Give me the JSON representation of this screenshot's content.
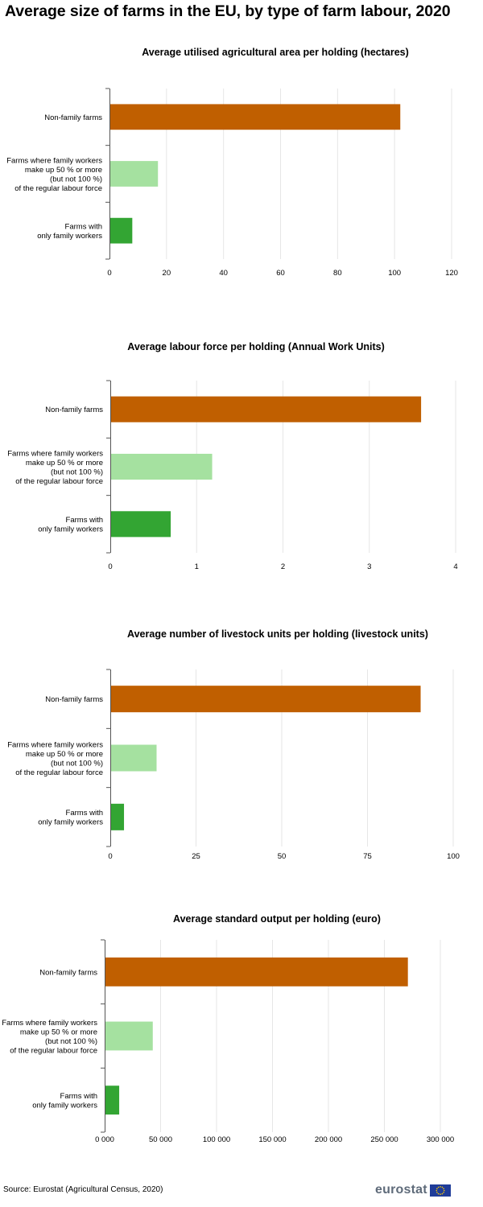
{
  "title": "Average size of farms in the EU, by type of farm labour, 2020",
  "source": "Source: Eurostat (Agricultural Census, 2020)",
  "logo_text": "eurostat",
  "colors": {
    "non_family": "#c05f00",
    "partly_family": "#a5e1a0",
    "only_family": "#33a533",
    "grid": "#e6e6e6",
    "axis": "#555555"
  },
  "chart_data": [
    {
      "type": "bar",
      "orientation": "horizontal",
      "title": "Average utilised agricultural area per holding (hectares)",
      "categories": [
        [
          "Non-family farms"
        ],
        [
          "Farms where family workers",
          "make up 50 % or more",
          "(but not 100 %)",
          "of the regular labour force"
        ],
        [
          "Farms with",
          "only family workers"
        ]
      ],
      "values": [
        102,
        17,
        8
      ],
      "xlim": [
        0,
        120
      ],
      "ticks": [
        0,
        20,
        40,
        60,
        80,
        100,
        120
      ],
      "tick_labels": [
        "0",
        "20",
        "40",
        "60",
        "80",
        "100",
        "120"
      ],
      "grid": true
    },
    {
      "type": "bar",
      "orientation": "horizontal",
      "title": "Average labour force per holding (Annual Work Units)",
      "categories": [
        [
          "Non-family farms"
        ],
        [
          "Farms where family workers",
          "make up 50 % or more",
          "(but not 100 %)",
          "of the regular labour force"
        ],
        [
          "Farms with",
          "only family workers"
        ]
      ],
      "values": [
        3.6,
        1.18,
        0.7
      ],
      "xlim": [
        0,
        4
      ],
      "ticks": [
        0,
        1,
        2,
        3,
        4
      ],
      "tick_labels": [
        "0",
        "1",
        "2",
        "3",
        "4"
      ],
      "grid": true
    },
    {
      "type": "bar",
      "orientation": "horizontal",
      "title": "Average number of livestock units per holding (livestock units)",
      "categories": [
        [
          "Non-family farms"
        ],
        [
          "Farms where family workers",
          "make up 50 % or more",
          "(but not 100 %)",
          "of the regular labour force"
        ],
        [
          "Farms with",
          "only family workers"
        ]
      ],
      "values": [
        90.5,
        13.5,
        4
      ],
      "xlim": [
        0,
        100
      ],
      "ticks": [
        0,
        25,
        50,
        75,
        100
      ],
      "tick_labels": [
        "0",
        "25",
        "50",
        "75",
        "100"
      ],
      "grid": true
    },
    {
      "type": "bar",
      "orientation": "horizontal",
      "title": "Average standard output per holding (euro)",
      "categories": [
        [
          "Non-family farms"
        ],
        [
          "Farms where family workers",
          "make up 50 % or more",
          "(but not 100 %)",
          "of the regular labour force"
        ],
        [
          "Farms with",
          "only family workers"
        ]
      ],
      "values": [
        271000,
        43000,
        13000
      ],
      "xlim": [
        0,
        300000
      ],
      "ticks": [
        0,
        50000,
        100000,
        150000,
        200000,
        250000,
        300000
      ],
      "tick_labels": [
        "0 000",
        "50 000",
        "100 000",
        "150 000",
        "200 000",
        "250 000",
        "300 000"
      ],
      "grid": true
    }
  ]
}
